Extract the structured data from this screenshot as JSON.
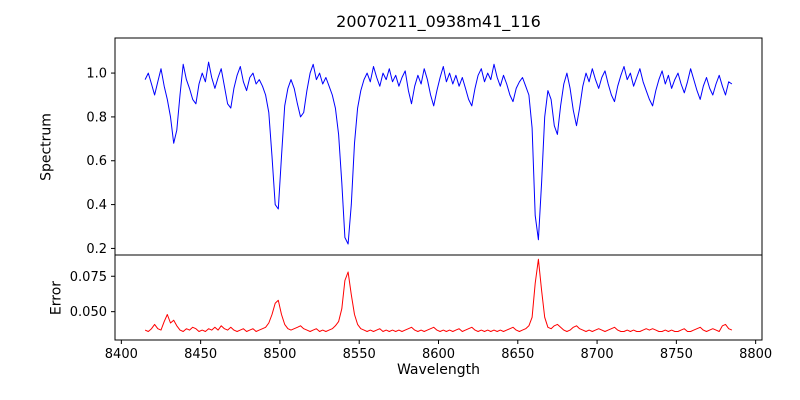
{
  "figure": {
    "background": "#ffffff",
    "axis_color": "#000000",
    "tick_color": "#000000"
  },
  "chart_data": [
    {
      "type": "line",
      "series_name": "spectrum",
      "title": "20070211_0938m41_116",
      "ylabel": "Spectrum",
      "color": "#0000ff",
      "xlim": [
        8396,
        8804
      ],
      "ylim": [
        0.17,
        1.16
      ],
      "yticks": [
        0.2,
        0.4,
        0.6,
        0.8,
        1.0
      ],
      "ytick_decimals": 1,
      "x_start": 8415,
      "x_step": 2,
      "values": [
        0.97,
        1.0,
        0.95,
        0.9,
        0.96,
        1.02,
        0.94,
        0.88,
        0.8,
        0.68,
        0.74,
        0.9,
        1.04,
        0.97,
        0.93,
        0.88,
        0.86,
        0.95,
        1.0,
        0.96,
        1.05,
        0.98,
        0.93,
        0.98,
        1.02,
        0.94,
        0.86,
        0.84,
        0.93,
        0.99,
        1.03,
        0.96,
        0.92,
        0.98,
        1.0,
        0.95,
        0.97,
        0.94,
        0.9,
        0.82,
        0.62,
        0.4,
        0.38,
        0.62,
        0.85,
        0.93,
        0.97,
        0.93,
        0.86,
        0.8,
        0.82,
        0.92,
        1.0,
        1.04,
        0.97,
        1.0,
        0.95,
        0.98,
        0.94,
        0.9,
        0.84,
        0.72,
        0.5,
        0.25,
        0.22,
        0.4,
        0.68,
        0.84,
        0.92,
        0.97,
        1.0,
        0.96,
        1.03,
        0.98,
        0.94,
        1.0,
        0.97,
        1.02,
        0.96,
        0.99,
        0.94,
        0.98,
        1.01,
        0.92,
        0.86,
        0.94,
        0.99,
        0.95,
        1.02,
        0.97,
        0.9,
        0.85,
        0.92,
        0.98,
        1.03,
        0.96,
        1.0,
        0.95,
        0.99,
        0.94,
        0.98,
        0.93,
        0.88,
        0.85,
        0.93,
        0.99,
        1.02,
        0.96,
        1.0,
        0.97,
        1.04,
        0.98,
        0.94,
        0.99,
        0.95,
        0.9,
        0.87,
        0.93,
        0.96,
        0.98,
        0.94,
        0.9,
        0.75,
        0.35,
        0.24,
        0.5,
        0.8,
        0.92,
        0.88,
        0.76,
        0.72,
        0.85,
        0.95,
        1.0,
        0.93,
        0.83,
        0.76,
        0.84,
        0.94,
        1.0,
        0.96,
        1.02,
        0.97,
        0.93,
        0.98,
        1.01,
        0.95,
        0.9,
        0.87,
        0.94,
        0.99,
        1.03,
        0.97,
        1.0,
        0.94,
        0.98,
        1.02,
        0.96,
        0.92,
        0.88,
        0.85,
        0.92,
        0.97,
        1.01,
        0.95,
        0.99,
        0.93,
        0.97,
        1.0,
        0.95,
        0.91,
        0.96,
        1.02,
        0.97,
        0.92,
        0.88,
        0.94,
        0.98,
        0.93,
        0.9,
        0.95,
        0.99,
        0.94,
        0.9,
        0.96,
        0.95
      ],
      "absorption_line_centers": [
        8434,
        8498,
        8542,
        8662
      ],
      "legend": "none",
      "grid": false
    },
    {
      "type": "line",
      "series_name": "error",
      "ylabel": "Error",
      "xlabel": "Wavelength",
      "color": "#ff0000",
      "xlim": [
        8396,
        8804
      ],
      "ylim": [
        0.03,
        0.09
      ],
      "yticks": [
        0.05,
        0.075
      ],
      "ytick_decimals": 3,
      "xticks": [
        8400,
        8450,
        8500,
        8550,
        8600,
        8650,
        8700,
        8750,
        8800
      ],
      "x_start": 8415,
      "x_step": 2,
      "values": [
        0.037,
        0.036,
        0.038,
        0.041,
        0.038,
        0.037,
        0.043,
        0.048,
        0.042,
        0.044,
        0.04,
        0.037,
        0.036,
        0.038,
        0.037,
        0.039,
        0.038,
        0.036,
        0.037,
        0.036,
        0.038,
        0.037,
        0.039,
        0.037,
        0.04,
        0.038,
        0.037,
        0.039,
        0.037,
        0.036,
        0.037,
        0.038,
        0.036,
        0.037,
        0.038,
        0.036,
        0.037,
        0.038,
        0.039,
        0.042,
        0.048,
        0.056,
        0.058,
        0.048,
        0.041,
        0.038,
        0.037,
        0.038,
        0.039,
        0.04,
        0.038,
        0.037,
        0.036,
        0.037,
        0.038,
        0.036,
        0.037,
        0.036,
        0.037,
        0.038,
        0.04,
        0.043,
        0.052,
        0.072,
        0.078,
        0.062,
        0.048,
        0.041,
        0.038,
        0.037,
        0.036,
        0.037,
        0.036,
        0.037,
        0.038,
        0.036,
        0.037,
        0.036,
        0.037,
        0.036,
        0.037,
        0.036,
        0.037,
        0.038,
        0.039,
        0.037,
        0.036,
        0.037,
        0.036,
        0.037,
        0.038,
        0.039,
        0.037,
        0.036,
        0.037,
        0.036,
        0.037,
        0.036,
        0.037,
        0.038,
        0.036,
        0.037,
        0.038,
        0.039,
        0.037,
        0.036,
        0.037,
        0.036,
        0.037,
        0.036,
        0.037,
        0.036,
        0.037,
        0.036,
        0.037,
        0.038,
        0.039,
        0.037,
        0.036,
        0.037,
        0.038,
        0.04,
        0.046,
        0.07,
        0.087,
        0.065,
        0.046,
        0.039,
        0.038,
        0.04,
        0.041,
        0.039,
        0.037,
        0.036,
        0.037,
        0.039,
        0.04,
        0.038,
        0.037,
        0.036,
        0.037,
        0.036,
        0.037,
        0.038,
        0.037,
        0.036,
        0.037,
        0.038,
        0.039,
        0.037,
        0.036,
        0.036,
        0.037,
        0.036,
        0.037,
        0.036,
        0.036,
        0.037,
        0.038,
        0.037,
        0.038,
        0.037,
        0.036,
        0.036,
        0.037,
        0.036,
        0.037,
        0.036,
        0.036,
        0.037,
        0.038,
        0.036,
        0.036,
        0.037,
        0.038,
        0.039,
        0.037,
        0.036,
        0.037,
        0.038,
        0.037,
        0.036,
        0.04,
        0.041,
        0.038,
        0.037
      ],
      "error_peak_centers": [
        8428,
        8498,
        8542,
        8662
      ],
      "legend": "none",
      "grid": false
    }
  ]
}
